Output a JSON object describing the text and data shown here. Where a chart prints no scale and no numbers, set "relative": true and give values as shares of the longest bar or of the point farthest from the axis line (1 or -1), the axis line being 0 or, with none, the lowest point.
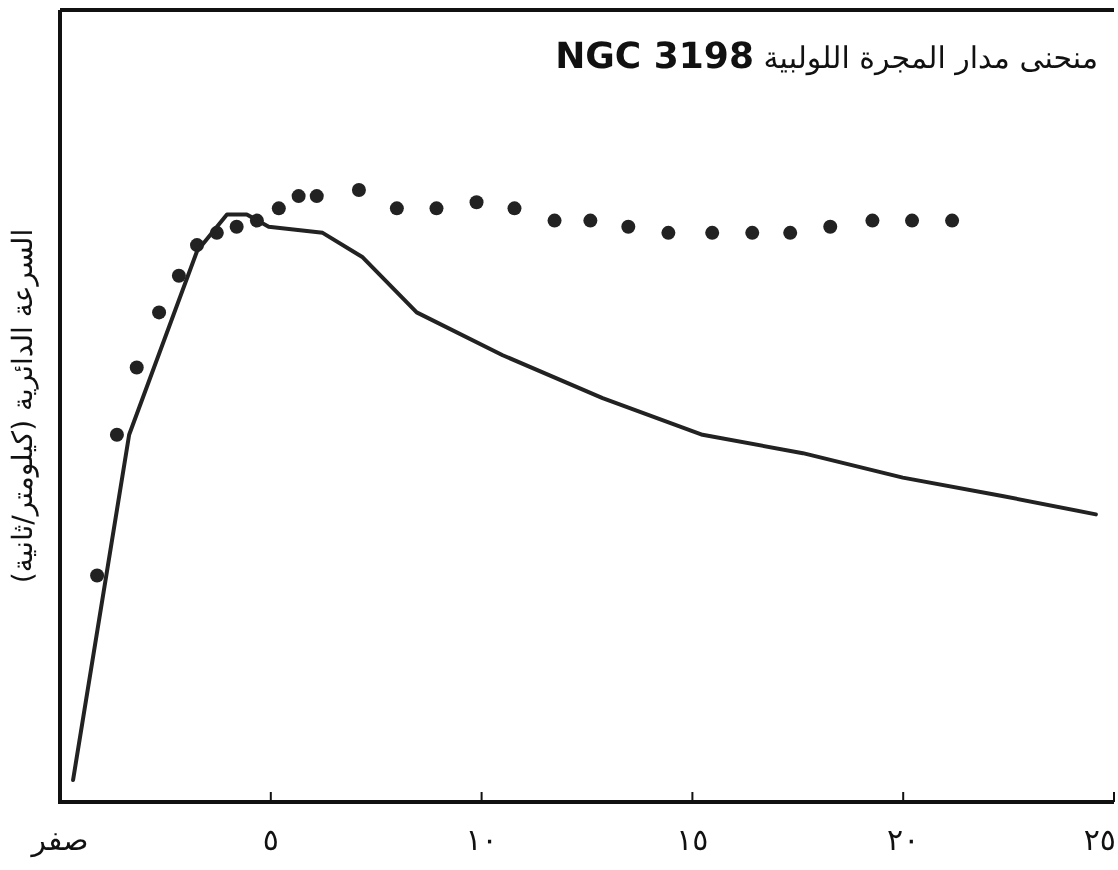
{
  "chart_data": {
    "type": "scatter",
    "title": "منحنى مدار المجرة اللولبية **NGC 3198**",
    "ylabel": "السرعة الدائرية (كيلومتر/ثانية)",
    "relative": true,
    "xlim": [
      0,
      25
    ],
    "xticks": [
      {
        "value": 0,
        "label": "صفر"
      },
      {
        "value": 5,
        "label": "٥"
      },
      {
        "value": 10,
        "label": "١٠"
      },
      {
        "value": 15,
        "label": "١٥"
      },
      {
        "value": 20,
        "label": "٢٠"
      },
      {
        "value": 25,
        "label": "٢٥"
      }
    ],
    "series": [
      {
        "color": "#222222",
        "x": [
          0.88,
          1.35,
          1.82,
          2.35,
          2.82,
          3.25,
          3.72,
          4.19,
          4.67,
          5.19,
          5.66,
          6.09,
          7.09,
          7.99,
          8.93,
          9.88,
          10.78,
          11.73,
          12.58,
          13.48,
          14.43,
          15.47,
          16.42,
          17.32,
          18.27,
          19.27,
          20.21,
          21.16
        ],
        "values": [
          0.37,
          0.6,
          0.71,
          0.8,
          0.86,
          0.91,
          0.93,
          0.94,
          0.95,
          0.97,
          0.99,
          0.99,
          1.0,
          0.97,
          0.97,
          0.98,
          0.97,
          0.95,
          0.95,
          0.94,
          0.93,
          0.93,
          0.93,
          0.93,
          0.94,
          0.95,
          0.95,
          0.95
        ]
      },
      {
        "type": "line",
        "marker": "none",
        "color": "#222222",
        "x": [
          0.31,
          1.64,
          3.25,
          3.96,
          4.43,
          4.95,
          6.23,
          7.18,
          8.46,
          10.5,
          12.87,
          15.24,
          17.62,
          19.99,
          22.35,
          24.57
        ],
        "values": [
          0.036,
          0.6,
          0.9,
          0.96,
          0.96,
          0.94,
          0.93,
          0.89,
          0.8,
          0.73,
          0.66,
          0.6,
          0.57,
          0.53,
          0.5,
          0.47
        ]
      }
    ]
  }
}
